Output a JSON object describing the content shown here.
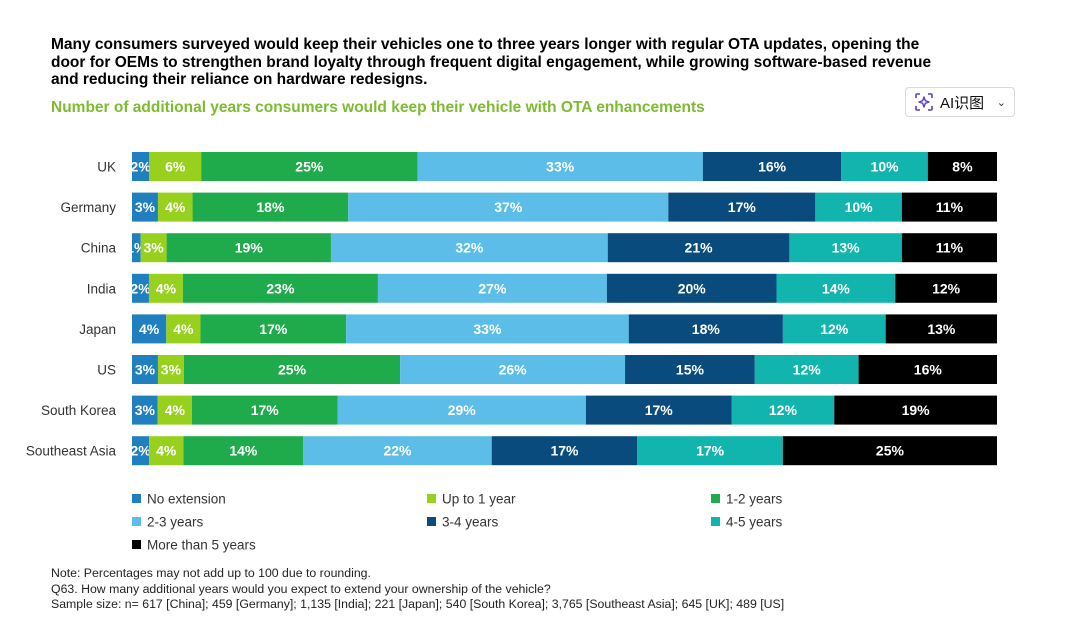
{
  "headline": "Many consumers surveyed would keep their vehicles one to three years longer with regular OTA updates, opening the door for OEMs to strengthen brand loyalty through frequent digital engagement, while growing software-based revenue and reducing their reliance on hardware redesigns.",
  "ai_badge": {
    "label": "AI识图",
    "icon": "sparkle-scan-icon"
  },
  "notes": {
    "note": "Note: Percentages may not add up to 100 due to rounding.",
    "question": "Q63. How many additional years would you expect to extend your ownership of the vehicle?",
    "sample": "Sample size: n= 617 [China]; 459 [Germany]; 1,135 [India]; 221 [Japan]; 540 [South Korea]; 3,765 [Southeast Asia]; 645 [UK]; 489 [US]"
  },
  "chart_data": {
    "type": "bar",
    "orientation": "horizontal",
    "stacked": true,
    "title": "Number of additional years consumers would keep their vehicle with OTA enhancements",
    "title_color": "#7dbb2f",
    "categories": [
      "UK",
      "Germany",
      "China",
      "India",
      "Japan",
      "US",
      "South Korea",
      "Southeast Asia"
    ],
    "xlim": [
      0,
      100
    ],
    "grid": false,
    "legend_position": "bottom",
    "series": [
      {
        "name": "No extension",
        "color": "#1f7fbf",
        "values": [
          2,
          3,
          1,
          2,
          4,
          3,
          3,
          2
        ]
      },
      {
        "name": "Up to 1 year",
        "color": "#97d11e",
        "values": [
          6,
          4,
          3,
          4,
          4,
          3,
          4,
          4
        ]
      },
      {
        "name": "1-2 years",
        "color": "#1fab4c",
        "values": [
          25,
          18,
          19,
          23,
          17,
          25,
          17,
          14
        ]
      },
      {
        "name": "2-3 years",
        "color": "#5bbde8",
        "values": [
          33,
          37,
          32,
          27,
          33,
          26,
          29,
          22
        ]
      },
      {
        "name": "3-4 years",
        "color": "#0a4b7e",
        "values": [
          16,
          17,
          21,
          20,
          18,
          15,
          17,
          17
        ]
      },
      {
        "name": "4-5 years",
        "color": "#12b5ad",
        "values": [
          10,
          10,
          13,
          14,
          12,
          12,
          12,
          17
        ]
      },
      {
        "name": "More than 5 years",
        "color": "#000000",
        "values": [
          8,
          11,
          11,
          12,
          13,
          16,
          19,
          25
        ]
      }
    ]
  }
}
